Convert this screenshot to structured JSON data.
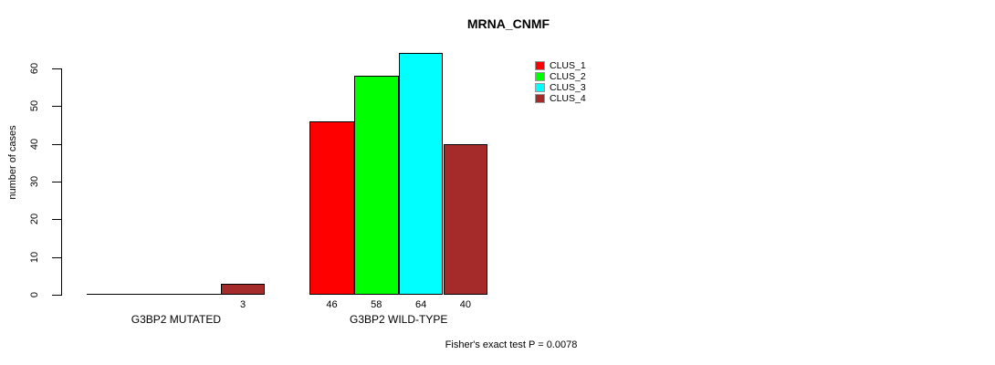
{
  "chart_data": {
    "type": "bar",
    "title": "MRNA_CNMF",
    "ylabel": "number of cases",
    "xlabel": "",
    "yticks": [
      0,
      10,
      20,
      30,
      40,
      50,
      60
    ],
    "ylim": [
      0,
      64
    ],
    "grid": false,
    "legend_position": "top-right",
    "series": [
      {
        "name": "CLUS_1",
        "color": "#FF0000"
      },
      {
        "name": "CLUS_2",
        "color": "#00FF00"
      },
      {
        "name": "CLUS_3",
        "color": "#00FFFF"
      },
      {
        "name": "CLUS_4",
        "color": "#A52A2A"
      }
    ],
    "groups": [
      {
        "label": "G3BP2 MUTATED",
        "values": [
          0,
          0,
          0,
          3
        ],
        "bar_labels": [
          "",
          "",
          "",
          "3"
        ]
      },
      {
        "label": "G3BP2 WILD-TYPE",
        "values": [
          46,
          58,
          64,
          40
        ],
        "bar_labels": [
          "46",
          "58",
          "64",
          "40"
        ]
      }
    ],
    "footnote": "Fisher's exact test P = 0.0078",
    "colors": {
      "axis": "#000000",
      "text": "#000000",
      "background": "#FFFFFF"
    }
  }
}
